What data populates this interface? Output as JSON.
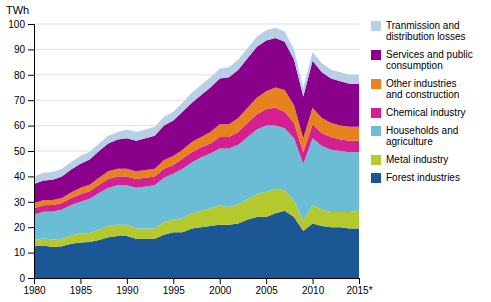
{
  "chart_data": {
    "type": "area",
    "stacked": true,
    "ylabel": "TWh",
    "x": [
      1980,
      1981,
      1982,
      1983,
      1984,
      1985,
      1986,
      1987,
      1988,
      1989,
      1990,
      1991,
      1992,
      1993,
      1994,
      1995,
      1996,
      1997,
      1998,
      1999,
      2000,
      2001,
      2002,
      2003,
      2004,
      2005,
      2006,
      2007,
      2008,
      2009,
      2010,
      2011,
      2012,
      2013,
      2014,
      2015
    ],
    "series": [
      {
        "name": "Forest industries",
        "color": "#1a5794",
        "values": [
          12.5,
          12.8,
          12.2,
          12.5,
          13.5,
          14.0,
          14.2,
          15.0,
          16.0,
          16.5,
          16.5,
          15.5,
          15.5,
          15.5,
          17.0,
          18.0,
          18.0,
          19.5,
          20.0,
          20.5,
          21.0,
          21.0,
          21.5,
          23.0,
          24.0,
          24.0,
          25.5,
          26.5,
          24.0,
          18.5,
          21.5,
          20.5,
          20.0,
          20.0,
          19.5,
          19.5
        ]
      },
      {
        "name": "Metal industry",
        "color": "#b5c92e",
        "values": [
          2.5,
          2.8,
          3.0,
          3.0,
          3.2,
          3.5,
          3.5,
          4.0,
          4.5,
          4.5,
          4.5,
          4.0,
          4.0,
          4.0,
          5.0,
          5.0,
          5.5,
          6.0,
          6.5,
          7.0,
          7.5,
          7.0,
          7.5,
          8.0,
          9.0,
          10.0,
          9.5,
          8.0,
          6.5,
          4.0,
          7.0,
          6.5,
          6.0,
          6.0,
          6.5,
          7.0
        ]
      },
      {
        "name": "Households and\nagriculture",
        "color": "#6bbdd6",
        "values": [
          10.0,
          10.5,
          11.0,
          11.5,
          12.0,
          12.5,
          13.5,
          14.5,
          15.0,
          15.5,
          15.5,
          16.0,
          16.5,
          17.0,
          17.5,
          18.0,
          19.5,
          20.0,
          21.0,
          21.5,
          22.5,
          23.0,
          23.5,
          24.5,
          25.5,
          26.0,
          25.0,
          24.5,
          24.5,
          22.5,
          26.5,
          25.0,
          24.5,
          24.0,
          23.5,
          23.0
        ]
      },
      {
        "name": "Chemical industry",
        "color": "#d42090",
        "values": [
          2.5,
          2.5,
          2.5,
          2.5,
          2.8,
          3.0,
          3.0,
          3.2,
          3.5,
          3.5,
          3.5,
          3.5,
          3.5,
          3.5,
          3.5,
          3.5,
          4.0,
          4.0,
          4.0,
          4.0,
          4.5,
          4.5,
          5.0,
          5.5,
          6.0,
          6.5,
          7.0,
          6.5,
          6.0,
          4.5,
          5.5,
          5.0,
          5.0,
          4.5,
          4.5,
          4.5
        ]
      },
      {
        "name": "Other industries\nand construction",
        "color": "#e8821e",
        "values": [
          2.0,
          2.0,
          2.0,
          2.0,
          2.2,
          2.5,
          2.5,
          2.8,
          3.0,
          3.0,
          3.0,
          3.0,
          3.0,
          3.0,
          3.5,
          3.5,
          3.5,
          4.0,
          4.0,
          4.5,
          5.0,
          5.0,
          5.5,
          6.0,
          6.5,
          7.0,
          8.0,
          8.5,
          7.0,
          5.5,
          6.5,
          6.0,
          5.5,
          5.5,
          5.5,
          5.5
        ]
      },
      {
        "name": "Services and public\nconsumption",
        "color": "#8b008b",
        "values": [
          7.5,
          7.8,
          8.0,
          8.5,
          9.0,
          9.5,
          10.0,
          10.5,
          11.0,
          11.5,
          12.0,
          12.0,
          12.5,
          13.0,
          13.5,
          14.0,
          15.0,
          15.5,
          16.5,
          17.5,
          18.0,
          18.5,
          19.0,
          19.5,
          20.0,
          20.0,
          19.5,
          19.0,
          18.0,
          16.5,
          18.5,
          18.0,
          17.5,
          17.5,
          17.0,
          17.0
        ]
      },
      {
        "name": "Tranmission and\ndistribution losses",
        "color": "#b8cfe8",
        "values": [
          3.0,
          3.0,
          3.0,
          3.0,
          3.0,
          3.0,
          3.0,
          3.0,
          3.0,
          3.0,
          3.5,
          3.5,
          3.5,
          3.5,
          3.5,
          3.5,
          3.5,
          4.0,
          4.0,
          4.0,
          4.0,
          4.0,
          4.0,
          4.0,
          4.0,
          4.0,
          4.0,
          4.0,
          4.0,
          3.5,
          3.5,
          3.5,
          3.5,
          3.5,
          3.5,
          3.5
        ]
      }
    ],
    "xlim": [
      1980,
      2015
    ],
    "xticks": [
      1980,
      1985,
      1990,
      1995,
      2000,
      2005,
      2010,
      {
        "value": 2015,
        "label": "2015*"
      }
    ],
    "ylim": [
      0,
      100
    ],
    "yticks": [
      0,
      10,
      20,
      30,
      40,
      50,
      60,
      70,
      80,
      90,
      100
    ],
    "grid": "y",
    "legend": "right"
  }
}
